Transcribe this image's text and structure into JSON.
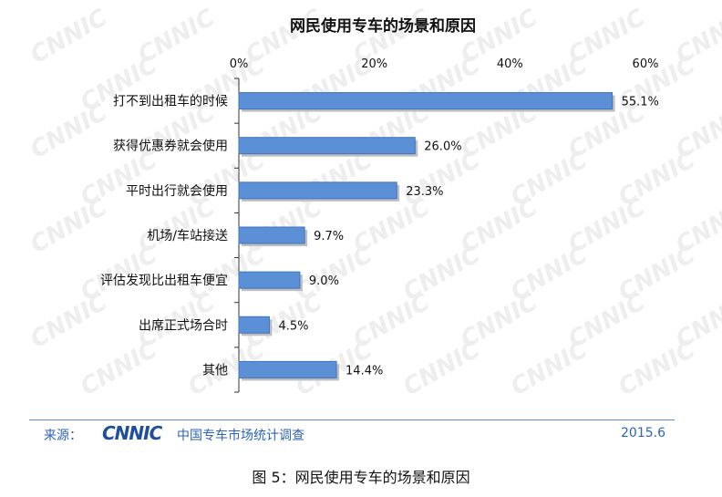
{
  "watermark": "CNNIC",
  "chart_data": {
    "type": "bar",
    "orientation": "horizontal",
    "title": "网民使用专车的场景和原因",
    "categories": [
      "打不到出租车的时候",
      "获得优惠券就会使用",
      "平时出行就会使用",
      "机场/车站接送",
      "评估发现比出租车便宜",
      "出席正式场合时",
      "其他"
    ],
    "values": [
      55.1,
      26.0,
      23.3,
      9.7,
      9.0,
      4.5,
      14.4
    ],
    "value_labels": [
      "55.1%",
      "26.0%",
      "23.3%",
      "9.7%",
      "9.0%",
      "4.5%",
      "14.4%"
    ],
    "xlim": [
      0,
      60
    ],
    "x_ticks": [
      0,
      20,
      40,
      60
    ],
    "x_tick_labels": [
      "0%",
      "20%",
      "40%",
      "60%"
    ],
    "x_axis_position": "top",
    "grid": false,
    "legend": "none",
    "bar_color": "#5b8fd6",
    "bar_edge_color": "#3f73c2",
    "shadow_color": "#bfbfbf"
  },
  "footer": {
    "source_label": "来源：",
    "logo_text": "CNNIC",
    "source_name": "中国专车市场统计调查",
    "date": "2015.6",
    "accent_color": "#2d63b8"
  },
  "caption": "图 5：网民使用专车的场景和原因"
}
